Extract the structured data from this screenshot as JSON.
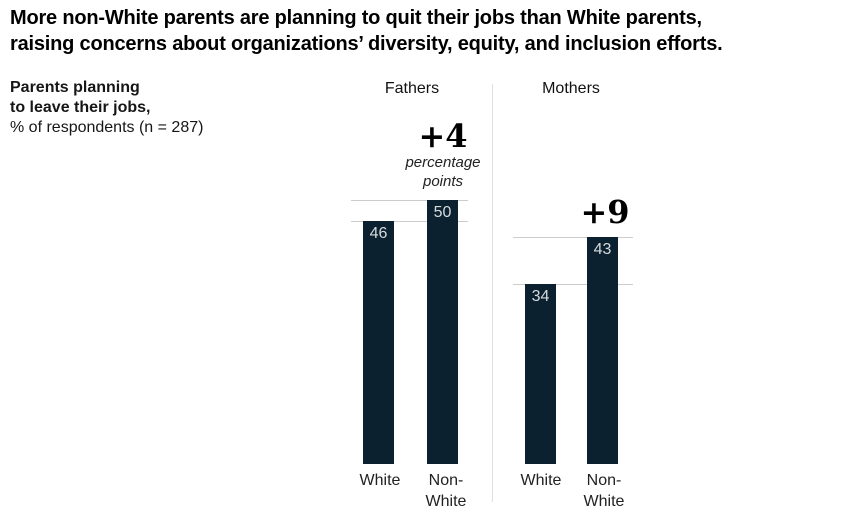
{
  "title": {
    "line1": "More non-White parents are planning to quit their jobs than White parents,",
    "line2": "raising concerns about organizations’ diversity, equity, and inclusion efforts."
  },
  "subtitle": {
    "bold_line1": "Parents planning",
    "bold_line2": "to leave their jobs,",
    "note": "% of respondents (n = 287)"
  },
  "chart_data": {
    "type": "bar",
    "title": "Parents planning to leave their jobs, % of respondents (n = 287)",
    "ylim": [
      0,
      50
    ],
    "grid": "reference line at top of each bar",
    "legend": "none",
    "bar_color": "#0b2130",
    "gridline_color": "#cccccc",
    "divider_color": "#e0e0e0",
    "value_label_color": "#d6dadd",
    "groups": [
      {
        "label": "Fathers",
        "categories": [
          "White",
          "Non-White"
        ],
        "values": [
          46,
          50
        ],
        "delta": "+4",
        "delta_note": "percentage points"
      },
      {
        "label": "Mothers",
        "categories": [
          "White",
          "Non-White"
        ],
        "values": [
          34,
          43
        ],
        "delta": "+9",
        "delta_note": ""
      }
    ]
  }
}
